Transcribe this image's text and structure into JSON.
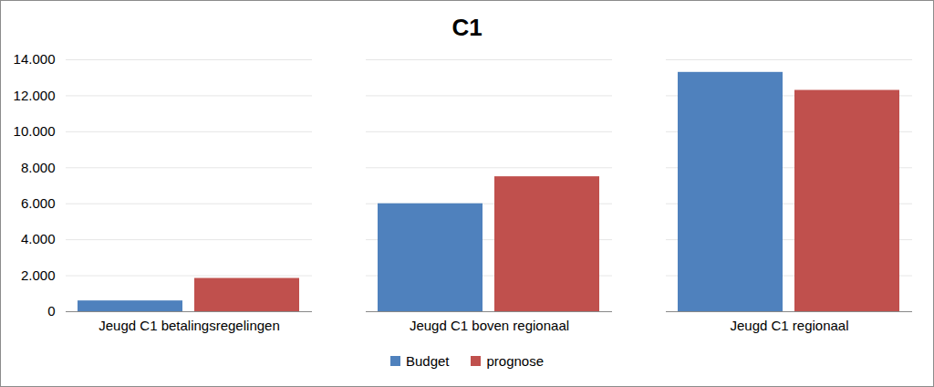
{
  "chart_data": {
    "type": "bar",
    "title": "C1",
    "categories": [
      "Jeugd C1 betalingsregelingen",
      "Jeugd C1 boven regionaal",
      "Jeugd C1 regionaal"
    ],
    "series": [
      {
        "name": "Budget",
        "color": "#4f81bd",
        "values": [
          600,
          6000,
          13300
        ]
      },
      {
        "name": "prognose",
        "color": "#c0504d",
        "values": [
          1850,
          7500,
          12300
        ]
      }
    ],
    "ylim": [
      0,
      14000
    ],
    "yticks": [
      0,
      {
        "value": 2000,
        "label": "2.000"
      },
      {
        "value": 4000,
        "label": "4.000"
      },
      {
        "value": 6000,
        "label": "6.000"
      },
      {
        "value": 8000,
        "label": "8.000"
      },
      {
        "value": 10000,
        "label": "10.000"
      },
      {
        "value": 12000,
        "label": "12.000"
      },
      {
        "value": 14000,
        "label": "14.000"
      }
    ],
    "grid": true,
    "legend": "bottom"
  }
}
